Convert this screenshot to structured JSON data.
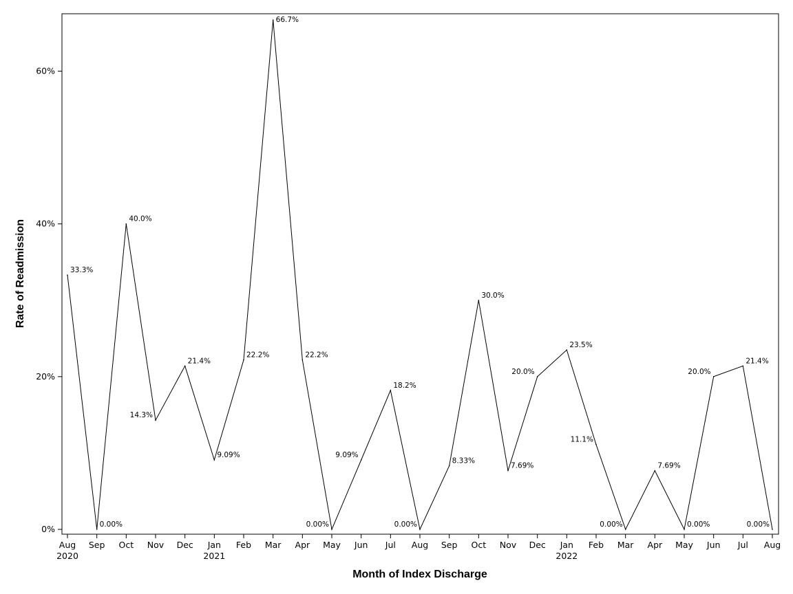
{
  "chart_data": {
    "type": "line",
    "title": "",
    "xlabel": "Month of Index Discharge",
    "ylabel": "Rate of Readmission",
    "ylim": [
      0,
      0.67
    ],
    "yticks": [
      0,
      0.2,
      0.4,
      0.6
    ],
    "ytick_labels": [
      "0%",
      "20%",
      "40%",
      "60%"
    ],
    "grid": false,
    "legend": "none",
    "line_color": "#000000",
    "x": [
      "Aug",
      "Sep",
      "Oct",
      "Nov",
      "Dec",
      "Jan",
      "Feb",
      "Mar",
      "Apr",
      "May",
      "Jun",
      "Jul",
      "Aug",
      "Sep",
      "Oct",
      "Nov",
      "Dec",
      "Jan",
      "Feb",
      "Mar",
      "Apr",
      "May",
      "Jun",
      "Jul",
      "Aug"
    ],
    "x_year_labels": [
      "2020",
      "",
      "",
      "",
      "",
      "2021",
      "",
      "",
      "",
      "",
      "",
      "",
      "",
      "",
      "",
      "",
      "",
      "2022",
      "",
      "",
      "",
      "",
      "",
      "",
      ""
    ],
    "values": [
      0.333,
      0.0,
      0.4,
      0.143,
      0.214,
      0.0909,
      0.222,
      0.667,
      0.222,
      0.0,
      0.0909,
      0.182,
      0.0,
      0.0833,
      0.3,
      0.0769,
      0.2,
      0.235,
      0.111,
      0.0,
      0.0769,
      0.0,
      0.2,
      0.214,
      0.0
    ],
    "data_labels": [
      "33.3%",
      "0.00%",
      "40.0%",
      "14.3%",
      "21.4%",
      "9.09%",
      "22.2%",
      "66.7%",
      "22.2%",
      "0.00%",
      "9.09%",
      "18.2%",
      "0.00%",
      "8.33%",
      "30.0%",
      "7.69%",
      "20.0%",
      "23.5%",
      "11.1%",
      "0.00%",
      "7.69%",
      "0.00%",
      "20.0%",
      "21.4%",
      "0.00%"
    ],
    "data_label_positions": [
      "right",
      "right",
      "right",
      "left",
      "right",
      "right",
      "right",
      "right",
      "right",
      "left",
      "left",
      "right",
      "left",
      "right",
      "right",
      "right",
      "left",
      "right",
      "left",
      "left",
      "right",
      "right",
      "left",
      "right",
      "left"
    ]
  }
}
